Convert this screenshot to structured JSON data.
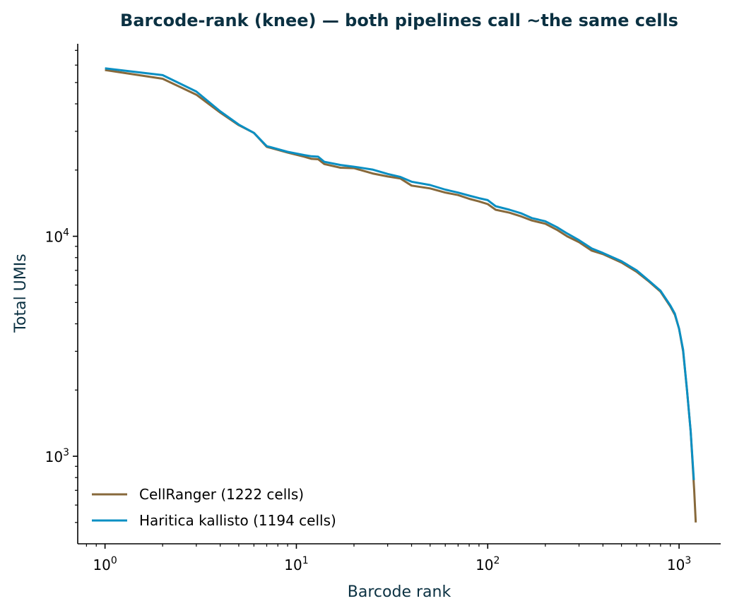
{
  "chart_data": {
    "type": "line",
    "title": "Barcode-rank (knee) — both pipelines call ~the same cells",
    "xlabel": "Barcode rank",
    "ylabel": "Total UMIs",
    "xscale": "log",
    "yscale": "log",
    "xlim": [
      0.72,
      1650
    ],
    "ylim": [
      400,
      75000
    ],
    "x_ticks": [
      {
        "value": 1,
        "base": "10",
        "exp": "0"
      },
      {
        "value": 10,
        "base": "10",
        "exp": "1"
      },
      {
        "value": 100,
        "base": "10",
        "exp": "2"
      },
      {
        "value": 1000,
        "base": "10",
        "exp": "3"
      }
    ],
    "y_ticks": [
      {
        "value": 1000,
        "base": "10",
        "exp": "3"
      },
      {
        "value": 10000,
        "base": "10",
        "exp": "4"
      }
    ],
    "grid": false,
    "legend_position": "bottom-left",
    "colors": {
      "title": "#0b3142",
      "axis_label": "#0b3142",
      "axis": "#000000"
    },
    "series": [
      {
        "name": "CellRanger (1222 cells)",
        "color": "#87693b",
        "points": [
          [
            1,
            57000
          ],
          [
            2,
            52000
          ],
          [
            3,
            44000
          ],
          [
            4,
            36500
          ],
          [
            5,
            32000
          ],
          [
            6,
            29500
          ],
          [
            7,
            25500
          ],
          [
            9,
            24000
          ],
          [
            11,
            23000
          ],
          [
            12,
            22500
          ],
          [
            13,
            22400
          ],
          [
            14,
            21300
          ],
          [
            17,
            20500
          ],
          [
            20,
            20400
          ],
          [
            25,
            19300
          ],
          [
            30,
            18700
          ],
          [
            35,
            18300
          ],
          [
            40,
            17000
          ],
          [
            50,
            16500
          ],
          [
            60,
            15800
          ],
          [
            70,
            15400
          ],
          [
            80,
            14800
          ],
          [
            90,
            14400
          ],
          [
            100,
            14000
          ],
          [
            110,
            13200
          ],
          [
            130,
            12800
          ],
          [
            150,
            12300
          ],
          [
            170,
            11800
          ],
          [
            200,
            11400
          ],
          [
            230,
            10700
          ],
          [
            260,
            10000
          ],
          [
            300,
            9400
          ],
          [
            350,
            8600
          ],
          [
            400,
            8300
          ],
          [
            500,
            7600
          ],
          [
            600,
            6900
          ],
          [
            700,
            6200
          ],
          [
            800,
            5600
          ],
          [
            900,
            4800
          ],
          [
            950,
            4400
          ],
          [
            1000,
            3800
          ],
          [
            1050,
            3000
          ],
          [
            1100,
            2000
          ],
          [
            1150,
            1300
          ],
          [
            1200,
            700
          ],
          [
            1222,
            500
          ]
        ]
      },
      {
        "name": "Haritica kallisto (1194 cells)",
        "color": "#0a8fc3",
        "points": [
          [
            1,
            58000
          ],
          [
            2,
            54000
          ],
          [
            3,
            45500
          ],
          [
            4,
            37000
          ],
          [
            5,
            32200
          ],
          [
            6,
            29500
          ],
          [
            7,
            25700
          ],
          [
            9,
            24200
          ],
          [
            11,
            23400
          ],
          [
            12,
            23100
          ],
          [
            13,
            23000
          ],
          [
            14,
            21800
          ],
          [
            17,
            21100
          ],
          [
            20,
            20700
          ],
          [
            25,
            20100
          ],
          [
            30,
            19200
          ],
          [
            35,
            18600
          ],
          [
            40,
            17700
          ],
          [
            50,
            17100
          ],
          [
            60,
            16300
          ],
          [
            70,
            15800
          ],
          [
            80,
            15300
          ],
          [
            90,
            14900
          ],
          [
            100,
            14600
          ],
          [
            110,
            13700
          ],
          [
            130,
            13200
          ],
          [
            150,
            12700
          ],
          [
            170,
            12100
          ],
          [
            200,
            11700
          ],
          [
            230,
            11000
          ],
          [
            260,
            10300
          ],
          [
            300,
            9600
          ],
          [
            350,
            8800
          ],
          [
            400,
            8400
          ],
          [
            500,
            7700
          ],
          [
            600,
            7000
          ],
          [
            700,
            6250
          ],
          [
            800,
            5650
          ],
          [
            900,
            4850
          ],
          [
            950,
            4450
          ],
          [
            1000,
            3800
          ],
          [
            1050,
            3050
          ],
          [
            1100,
            2000
          ],
          [
            1150,
            1300
          ],
          [
            1194,
            780
          ]
        ]
      }
    ]
  }
}
